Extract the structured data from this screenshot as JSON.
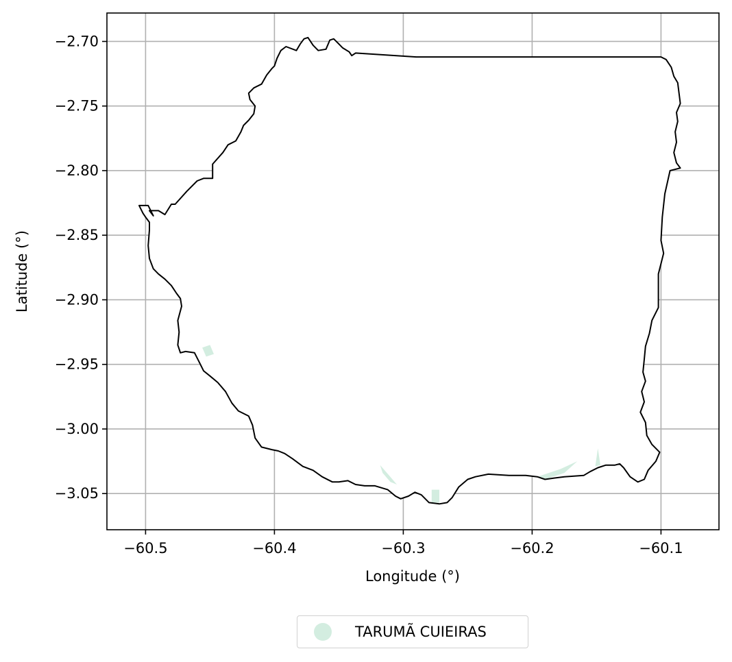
{
  "chart_data": {
    "type": "map",
    "xlabel": "Longitude (°)",
    "ylabel": "Latitude (°)",
    "xlim": [
      -60.53,
      -60.055
    ],
    "ylim": [
      -3.078,
      -2.678
    ],
    "xticks": [
      -60.5,
      -60.4,
      -60.3,
      -60.2,
      -60.1
    ],
    "xtick_labels": [
      "−60.5",
      "−60.4",
      "−60.3",
      "−60.2",
      "−60.1"
    ],
    "yticks": [
      -2.7,
      -2.75,
      -2.8,
      -2.85,
      -2.9,
      -2.95,
      -3.0,
      -3.05
    ],
    "ytick_labels": [
      "−2.70",
      "−2.75",
      "−2.80",
      "−2.85",
      "−2.90",
      "−2.95",
      "−3.00",
      "−3.05"
    ],
    "grid": true,
    "legend_position": "bottom-center",
    "series": [
      {
        "name": "TARUMÃ CUIEIRAS",
        "color": "#d3ede0",
        "outline_color": "#000000",
        "boundary": [
          [
            -60.505,
            -2.827
          ],
          [
            -60.498,
            -2.827
          ],
          [
            -60.494,
            -2.835
          ],
          [
            -60.497,
            -2.831
          ],
          [
            -60.49,
            -2.831
          ],
          [
            -60.485,
            -2.834
          ],
          [
            -60.48,
            -2.826
          ],
          [
            -60.477,
            -2.826
          ],
          [
            -60.468,
            -2.816
          ],
          [
            -60.46,
            -2.808
          ],
          [
            -60.455,
            -2.806
          ],
          [
            -60.448,
            -2.806
          ],
          [
            -60.448,
            -2.795
          ],
          [
            -60.44,
            -2.786
          ],
          [
            -60.436,
            -2.78
          ],
          [
            -60.43,
            -2.777
          ],
          [
            -60.426,
            -2.77
          ],
          [
            -60.424,
            -2.765
          ],
          [
            -60.42,
            -2.761
          ],
          [
            -60.416,
            -2.756
          ],
          [
            -60.415,
            -2.75
          ],
          [
            -60.419,
            -2.745
          ],
          [
            -60.42,
            -2.74
          ],
          [
            -60.416,
            -2.736
          ],
          [
            -60.41,
            -2.733
          ],
          [
            -60.406,
            -2.726
          ],
          [
            -60.402,
            -2.721
          ],
          [
            -60.4,
            -2.719
          ],
          [
            -60.398,
            -2.713
          ],
          [
            -60.395,
            -2.707
          ],
          [
            -60.391,
            -2.704
          ],
          [
            -60.383,
            -2.707
          ],
          [
            -60.38,
            -2.702
          ],
          [
            -60.377,
            -2.698
          ],
          [
            -60.374,
            -2.697
          ],
          [
            -60.37,
            -2.703
          ],
          [
            -60.366,
            -2.707
          ],
          [
            -60.36,
            -2.706
          ],
          [
            -60.357,
            -2.699
          ],
          [
            -60.354,
            -2.698
          ],
          [
            -60.35,
            -2.702
          ],
          [
            -60.347,
            -2.705
          ],
          [
            -60.342,
            -2.708
          ],
          [
            -60.34,
            -2.711
          ],
          [
            -60.337,
            -2.709
          ],
          [
            -60.29,
            -2.712
          ],
          [
            -60.1,
            -2.712
          ],
          [
            -60.096,
            -2.714
          ],
          [
            -60.092,
            -2.72
          ],
          [
            -60.09,
            -2.727
          ],
          [
            -60.087,
            -2.732
          ],
          [
            -60.086,
            -2.74
          ],
          [
            -60.085,
            -2.748
          ],
          [
            -60.088,
            -2.755
          ],
          [
            -60.087,
            -2.762
          ],
          [
            -60.089,
            -2.77
          ],
          [
            -60.088,
            -2.778
          ],
          [
            -60.09,
            -2.786
          ],
          [
            -60.088,
            -2.794
          ],
          [
            -60.085,
            -2.798
          ],
          [
            -60.093,
            -2.8
          ],
          [
            -60.097,
            -2.818
          ],
          [
            -60.099,
            -2.836
          ],
          [
            -60.1,
            -2.854
          ],
          [
            -60.098,
            -2.864
          ],
          [
            -60.1,
            -2.872
          ],
          [
            -60.102,
            -2.88
          ],
          [
            -60.102,
            -2.893
          ],
          [
            -60.102,
            -2.906
          ],
          [
            -60.107,
            -2.916
          ],
          [
            -60.109,
            -2.926
          ],
          [
            -60.112,
            -2.936
          ],
          [
            -60.113,
            -2.946
          ],
          [
            -60.114,
            -2.956
          ],
          [
            -60.112,
            -2.963
          ],
          [
            -60.115,
            -2.971
          ],
          [
            -60.113,
            -2.979
          ],
          [
            -60.116,
            -2.987
          ],
          [
            -60.112,
            -2.995
          ],
          [
            -60.111,
            -3.005
          ],
          [
            -60.107,
            -3.012
          ],
          [
            -60.101,
            -3.018
          ],
          [
            -60.104,
            -3.025
          ],
          [
            -60.11,
            -3.032
          ],
          [
            -60.113,
            -3.039
          ],
          [
            -60.118,
            -3.041
          ],
          [
            -60.124,
            -3.037
          ],
          [
            -60.129,
            -3.03
          ],
          [
            -60.132,
            -3.027
          ],
          [
            -60.136,
            -3.028
          ],
          [
            -60.143,
            -3.028
          ],
          [
            -60.149,
            -3.03
          ],
          [
            -60.155,
            -3.033
          ],
          [
            -60.16,
            -3.036
          ],
          [
            -60.175,
            -3.037
          ],
          [
            -60.183,
            -3.038
          ],
          [
            -60.19,
            -3.039
          ],
          [
            -60.196,
            -3.037
          ],
          [
            -60.205,
            -3.036
          ],
          [
            -60.218,
            -3.036
          ],
          [
            -60.234,
            -3.035
          ],
          [
            -60.244,
            -3.037
          ],
          [
            -60.25,
            -3.039
          ],
          [
            -60.257,
            -3.045
          ],
          [
            -60.262,
            -3.053
          ],
          [
            -60.266,
            -3.057
          ],
          [
            -60.272,
            -3.058
          ],
          [
            -60.28,
            -3.057
          ],
          [
            -60.286,
            -3.051
          ],
          [
            -60.291,
            -3.049
          ],
          [
            -60.296,
            -3.052
          ],
          [
            -60.302,
            -3.054
          ],
          [
            -60.306,
            -3.052
          ],
          [
            -60.312,
            -3.047
          ],
          [
            -60.322,
            -3.044
          ],
          [
            -60.33,
            -3.044
          ],
          [
            -60.337,
            -3.043
          ],
          [
            -60.343,
            -3.04
          ],
          [
            -60.35,
            -3.041
          ],
          [
            -60.355,
            -3.041
          ],
          [
            -60.363,
            -3.037
          ],
          [
            -60.37,
            -3.032
          ],
          [
            -60.378,
            -3.029
          ],
          [
            -60.386,
            -3.023
          ],
          [
            -60.392,
            -3.019
          ],
          [
            -60.397,
            -3.017
          ],
          [
            -60.402,
            -3.016
          ],
          [
            -60.41,
            -3.014
          ],
          [
            -60.415,
            -3.007
          ],
          [
            -60.417,
            -2.997
          ],
          [
            -60.42,
            -2.99
          ],
          [
            -60.428,
            -2.986
          ],
          [
            -60.433,
            -2.98
          ],
          [
            -60.438,
            -2.971
          ],
          [
            -60.444,
            -2.964
          ],
          [
            -60.45,
            -2.959
          ],
          [
            -60.455,
            -2.955
          ],
          [
            -60.458,
            -2.949
          ],
          [
            -60.462,
            -2.941
          ],
          [
            -60.469,
            -2.94
          ],
          [
            -60.473,
            -2.941
          ],
          [
            -60.475,
            -2.935
          ],
          [
            -60.474,
            -2.925
          ],
          [
            -60.475,
            -2.916
          ],
          [
            -60.472,
            -2.905
          ],
          [
            -60.473,
            -2.899
          ],
          [
            -60.476,
            -2.895
          ],
          [
            -60.48,
            -2.889
          ],
          [
            -60.485,
            -2.884
          ],
          [
            -60.49,
            -2.88
          ],
          [
            -60.494,
            -2.876
          ],
          [
            -60.497,
            -2.868
          ],
          [
            -60.498,
            -2.858
          ],
          [
            -60.497,
            -2.846
          ],
          [
            -60.497,
            -2.84
          ],
          [
            -60.5,
            -2.836
          ],
          [
            -60.502,
            -2.833
          ],
          [
            -60.505,
            -2.827
          ]
        ],
        "fill_patches": [
          [
            [
              -60.318,
              -3.028
            ],
            [
              -60.311,
              -3.036
            ],
            [
              -60.305,
              -3.043
            ],
            [
              -60.31,
              -3.041
            ],
            [
              -60.316,
              -3.034
            ]
          ],
          [
            [
              -60.278,
              -3.047
            ],
            [
              -60.272,
              -3.047
            ],
            [
              -60.272,
              -3.057
            ],
            [
              -60.278,
              -3.057
            ]
          ],
          [
            [
              -60.178,
              -3.031
            ],
            [
              -60.165,
              -3.025
            ],
            [
              -60.175,
              -3.034
            ],
            [
              -60.19,
              -3.039
            ],
            [
              -60.196,
              -3.037
            ]
          ],
          [
            [
              -60.149,
              -3.015
            ],
            [
              -60.147,
              -3.028
            ],
            [
              -60.151,
              -3.029
            ]
          ],
          [
            [
              -60.456,
              -2.937
            ],
            [
              -60.45,
              -2.935
            ],
            [
              -60.447,
              -2.942
            ],
            [
              -60.453,
              -2.944
            ]
          ]
        ]
      }
    ]
  }
}
